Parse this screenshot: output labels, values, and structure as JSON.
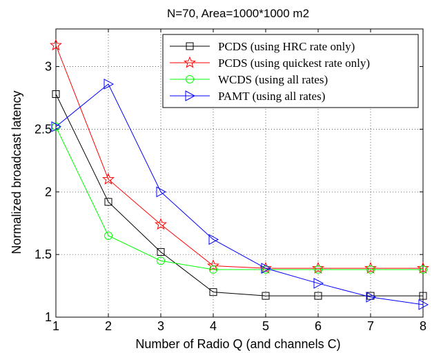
{
  "chart_data": {
    "type": "line",
    "title": "N=70, Area=1000*1000 m2",
    "xlabel": "Number of Radio Q (and channels C)",
    "ylabel": "Normalized broadcast latency",
    "xlim": [
      1,
      8
    ],
    "ylim": [
      1,
      3.3
    ],
    "x_ticks": [
      1,
      2,
      3,
      4,
      5,
      6,
      7,
      8
    ],
    "y_ticks": [
      1,
      1.5,
      2,
      2.5,
      3
    ],
    "x_tick_labels": [
      "1",
      "2",
      "3",
      "4",
      "5",
      "6",
      "7",
      "8"
    ],
    "y_tick_labels": [
      "1",
      "1.5",
      "2",
      "2.5",
      "3"
    ],
    "grid": true,
    "legend_position": "top-right",
    "x": [
      1,
      2,
      3,
      4,
      5,
      6,
      7,
      8
    ],
    "series": [
      {
        "name": "PCDS (using HRC rate only)",
        "color": "#000000",
        "marker": "square",
        "values": [
          2.78,
          1.92,
          1.52,
          1.2,
          1.17,
          1.17,
          1.17,
          1.17
        ]
      },
      {
        "name": "PCDS (using quickest rate only)",
        "color": "#ff0000",
        "marker": "star",
        "values": [
          3.17,
          2.1,
          1.74,
          1.41,
          1.39,
          1.39,
          1.39,
          1.39
        ]
      },
      {
        "name": "WCDS (using all rates)",
        "color": "#00ff00",
        "marker": "circle",
        "values": [
          2.52,
          1.65,
          1.45,
          1.38,
          1.38,
          1.38,
          1.38,
          1.38
        ]
      },
      {
        "name": "PAMT (using all rates)",
        "color": "#0000ff",
        "marker": "triangle-right",
        "values": [
          2.52,
          2.86,
          2.0,
          1.62,
          1.39,
          1.27,
          1.16,
          1.1
        ]
      }
    ]
  }
}
